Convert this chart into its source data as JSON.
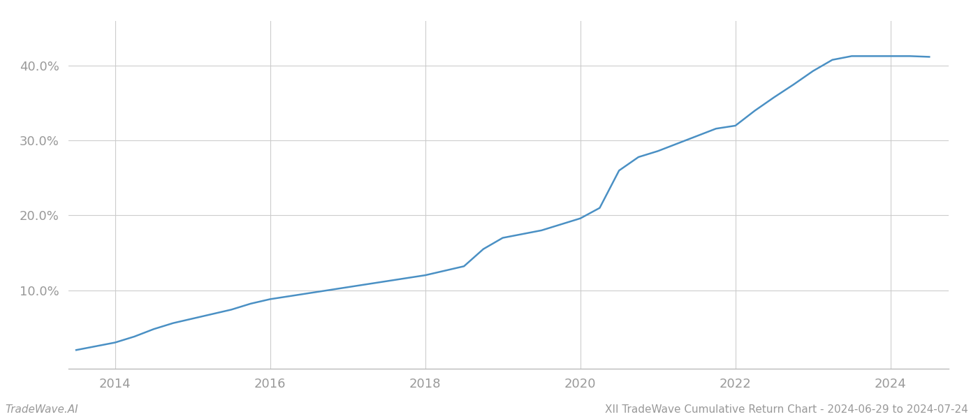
{
  "title": "XII TradeWave Cumulative Return Chart - 2024-06-29 to 2024-07-24",
  "watermark": "TradeWave.AI",
  "line_color": "#4a90c4",
  "line_width": 1.8,
  "background_color": "#ffffff",
  "grid_color": "#cccccc",
  "x_years": [
    2014,
    2016,
    2018,
    2020,
    2022,
    2024
  ],
  "yticks": [
    0.1,
    0.2,
    0.3,
    0.4
  ],
  "ylim": [
    -0.005,
    0.46
  ],
  "xlim": [
    2013.4,
    2024.75
  ],
  "data_x": [
    2013.5,
    2013.75,
    2014.0,
    2014.25,
    2014.5,
    2014.75,
    2015.0,
    2015.25,
    2015.5,
    2015.75,
    2016.0,
    2016.25,
    2016.5,
    2016.75,
    2017.0,
    2017.25,
    2017.5,
    2017.75,
    2018.0,
    2018.25,
    2018.5,
    2018.75,
    2019.0,
    2019.25,
    2019.5,
    2019.75,
    2020.0,
    2020.25,
    2020.5,
    2020.75,
    2021.0,
    2021.25,
    2021.5,
    2021.75,
    2022.0,
    2022.25,
    2022.5,
    2022.75,
    2023.0,
    2023.25,
    2023.5,
    2023.75,
    2024.0,
    2024.25,
    2024.5
  ],
  "data_y": [
    0.02,
    0.025,
    0.03,
    0.038,
    0.048,
    0.056,
    0.062,
    0.068,
    0.074,
    0.082,
    0.088,
    0.092,
    0.096,
    0.1,
    0.104,
    0.108,
    0.112,
    0.116,
    0.12,
    0.126,
    0.132,
    0.155,
    0.17,
    0.175,
    0.18,
    0.188,
    0.196,
    0.21,
    0.26,
    0.278,
    0.286,
    0.296,
    0.306,
    0.316,
    0.32,
    0.34,
    0.358,
    0.375,
    0.393,
    0.408,
    0.413,
    0.413,
    0.413,
    0.413,
    0.412
  ]
}
